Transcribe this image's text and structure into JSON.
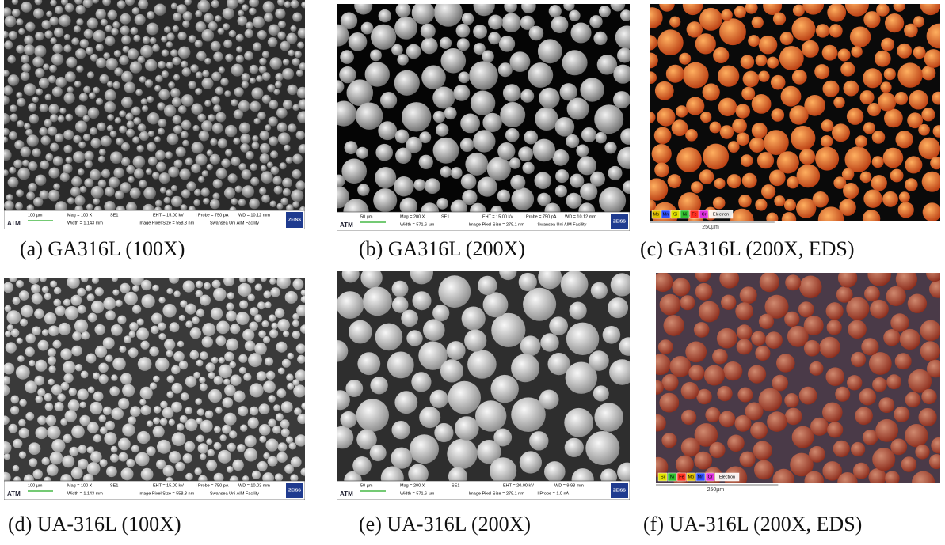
{
  "panels": [
    {
      "caption": "(a) GA316L (100X)",
      "image": {
        "kind": "sem",
        "scale": "100 µm",
        "logo": "ATM",
        "brand": "ZEISS",
        "top": [
          "Mag =  100 X",
          "SE1",
          "EHT = 15.00 kV",
          "I Probe =  750 pA",
          "WD = 10.12 mm"
        ],
        "bottom": [
          "Width = 1.143 mm",
          "Image Pixel Size = 558.3 nm",
          "Swansea Uni AIM Facility"
        ]
      }
    },
    {
      "caption": "(b) GA316L (200X)",
      "image": {
        "kind": "sem",
        "scale": "50 µm",
        "logo": "ATM",
        "brand": "ZEISS",
        "top": [
          "Mag =  200 X",
          "SE1",
          "EHT = 15.00 kV",
          "I Probe =  750 pA",
          "WD = 10.12 mm"
        ],
        "bottom": [
          "Width = 571.6 µm",
          "Image Pixel Size = 279.1 nm",
          "Swansea Uni AIM Facility"
        ]
      }
    },
    {
      "caption": "(c) GA316L (200X, EDS)",
      "image": {
        "kind": "eds",
        "legend": [
          "Mo",
          "Mn",
          "Si",
          "Ni",
          "Fe",
          "Cr",
          "Electron"
        ],
        "scale": "250µm"
      }
    },
    {
      "caption": "(d) UA-316L (100X)",
      "image": {
        "kind": "sem",
        "scale": "100 µm",
        "logo": "ATM",
        "brand": "ZEISS",
        "top": [
          "Mag =  100 X",
          "SE1",
          "EHT = 15.00 kV",
          "I Probe =  750 pA",
          "WD = 10.03 mm"
        ],
        "bottom": [
          "Width = 1.143 mm",
          "Image Pixel Size = 558.3 nm",
          "Swansea Uni AIM Facility"
        ]
      }
    },
    {
      "caption": "(e) UA-316L (200X)",
      "image": {
        "kind": "sem",
        "scale": "50 µm",
        "logo": "ATM",
        "brand": "ZEISS",
        "top": [
          "Mag =  200 X",
          "SE1",
          "EHT = 20.00 kV",
          "WD = 9.98 mm"
        ],
        "bottom": [
          "Width = 571.6 µm",
          "Image Pixel Size = 279.1 nm",
          "I Probe =   1.0 nA"
        ]
      }
    },
    {
      "caption": "(f) UA-316L (200X, EDS)",
      "image": {
        "kind": "eds",
        "legend": [
          "Si",
          "Ni",
          "Fe",
          "Mo",
          "Mn",
          "Cr",
          "Electron"
        ],
        "scale": "250µm"
      }
    }
  ]
}
